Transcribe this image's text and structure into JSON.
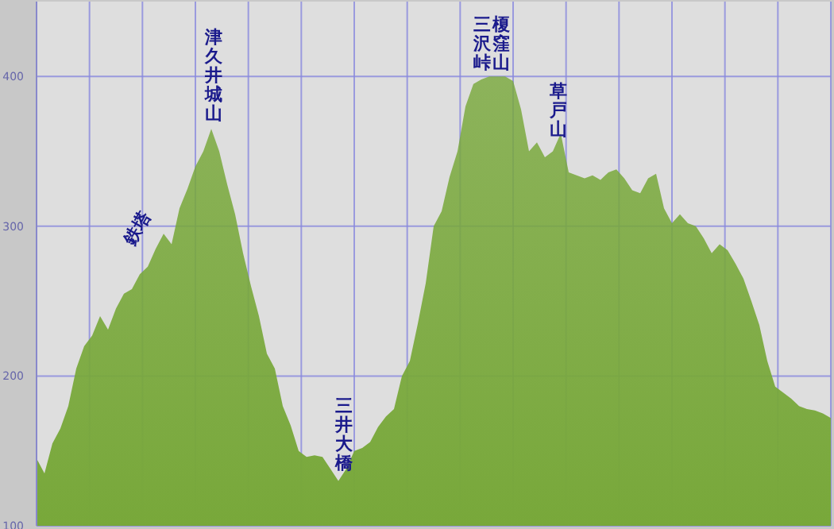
{
  "chart_data": {
    "type": "area",
    "color": "#78a83a",
    "categories": [
      null,
      null,
      null,
      null,
      null,
      null,
      null,
      null,
      null,
      null,
      null,
      null,
      null,
      null,
      null,
      null,
      null,
      null,
      null,
      null,
      null,
      null,
      null,
      null,
      null,
      null,
      null,
      null,
      null,
      null,
      null,
      null,
      null,
      null,
      null,
      null,
      null,
      null,
      null,
      null,
      null,
      null,
      null,
      null,
      null,
      null,
      null,
      null,
      null,
      null,
      null,
      null,
      null,
      null,
      null,
      null,
      null,
      null,
      null,
      null,
      null,
      null,
      null,
      null,
      null,
      null,
      null,
      null,
      null,
      null,
      null,
      null,
      null,
      null,
      null,
      null,
      null,
      null,
      null,
      null,
      null,
      null,
      null,
      null,
      null,
      null,
      null,
      null,
      null,
      null,
      null,
      null,
      null,
      null,
      null,
      null,
      null,
      null,
      null,
      null,
      null
    ],
    "values": [
      145,
      135,
      155,
      165,
      180,
      205,
      220,
      227,
      240,
      231,
      245,
      255,
      258,
      268,
      273,
      285,
      295,
      288,
      312,
      325,
      340,
      350,
      365,
      350,
      328,
      308,
      282,
      260,
      240,
      215,
      205,
      180,
      167,
      150,
      146,
      147,
      146,
      138,
      130,
      138,
      150,
      152,
      156,
      166,
      173,
      178,
      200,
      210,
      235,
      262,
      300,
      310,
      333,
      350,
      380,
      395,
      398,
      400,
      400,
      400,
      397,
      378,
      350,
      356,
      346,
      350,
      362,
      336,
      334,
      332,
      334,
      331,
      336,
      338,
      332,
      324,
      322,
      332,
      335,
      312,
      302,
      308,
      302,
      300,
      292,
      282,
      288,
      284,
      275,
      265,
      250,
      234,
      210,
      193,
      189,
      185,
      180,
      178,
      177,
      175,
      172
    ],
    "ylim": [
      100,
      450
    ],
    "yticks": [
      100,
      200,
      300,
      400
    ],
    "grid": true,
    "tick_labels": "y",
    "annotations": [
      "津久井城山",
      "鉄塔",
      "三井大橋",
      "榎窪山",
      "三沢峠",
      "草戸山"
    ]
  }
}
